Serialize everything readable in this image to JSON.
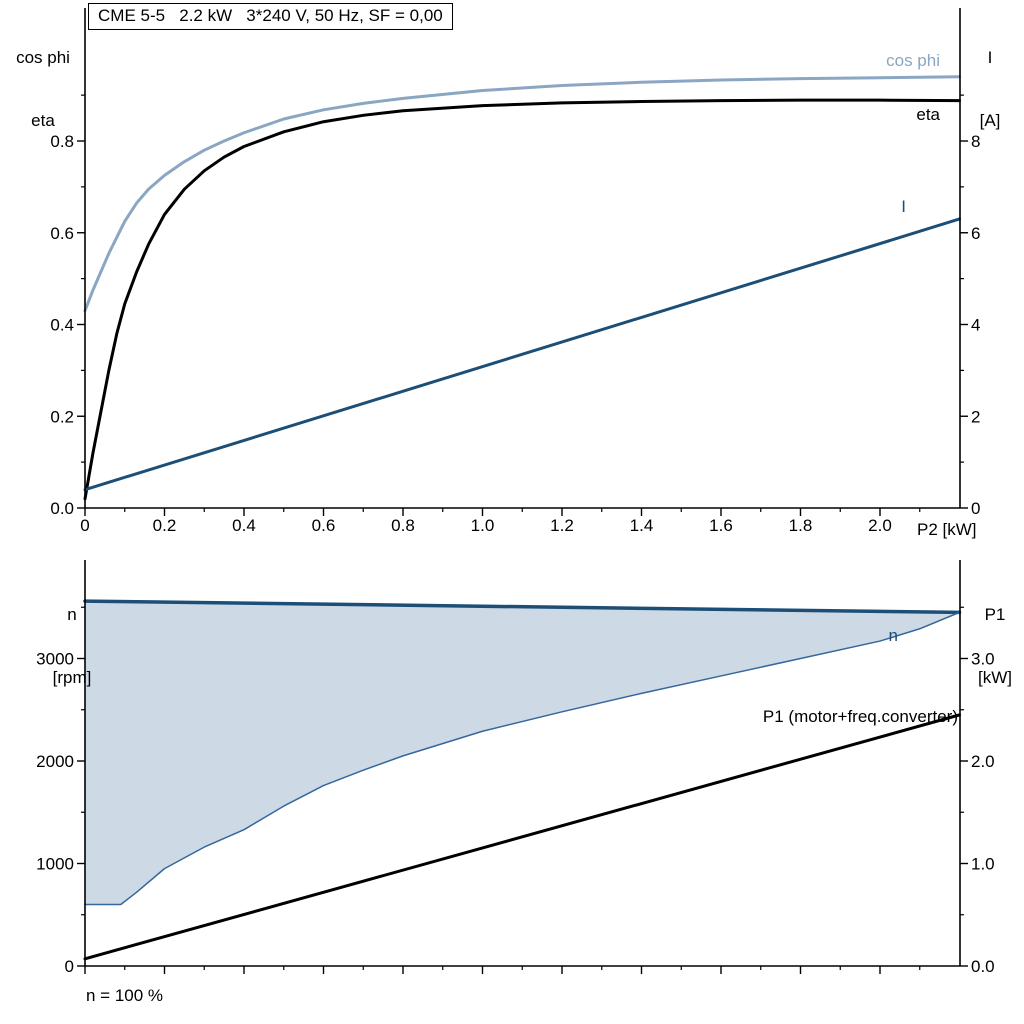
{
  "colors": {
    "light_blue": "#8aa6c3",
    "dark_blue": "#1c4f78",
    "black": "#000000",
    "shade_fill": "#cdd9e5",
    "envelope_line": "#35679c"
  },
  "chart_data": [
    {
      "type": "line",
      "title": "CME 5-5   2.2 kW   3*240 V, 50 Hz, SF = 0,00",
      "xlabel": "P2 [kW]",
      "y_left_label_lines": [
        "cos phi",
        "eta"
      ],
      "y_right_label_lines": [
        "I",
        "[A]"
      ],
      "xlim": [
        0,
        2.2
      ],
      "ylim_left": [
        0,
        1.0
      ],
      "ylim_right": [
        0,
        10
      ],
      "grid": false,
      "x_ticks": {
        "values": [
          0,
          0.2,
          0.4,
          0.6,
          0.8,
          1.0,
          1.2,
          1.4,
          1.6,
          1.8,
          2.0
        ],
        "labels": [
          "0",
          "0.2",
          "0.4",
          "0.6",
          "0.8",
          "1.0",
          "1.2",
          "1.4",
          "1.6",
          "1.8",
          "2.0"
        ]
      },
      "y_left_ticks": {
        "values": [
          0,
          0.2,
          0.4,
          0.6,
          0.8
        ],
        "labels": [
          "0.0",
          "0.2",
          "0.4",
          "0.6",
          "0.8"
        ]
      },
      "y_right_ticks": {
        "values": [
          0,
          2,
          4,
          6,
          8
        ],
        "labels": [
          "0",
          "2",
          "4",
          "6",
          "8"
        ]
      },
      "series": [
        {
          "name": "cos phi",
          "axis": "left",
          "color": "#8aa6c3",
          "width": 3,
          "x": [
            0,
            0.02,
            0.04,
            0.06,
            0.08,
            0.1,
            0.13,
            0.16,
            0.2,
            0.25,
            0.3,
            0.35,
            0.4,
            0.5,
            0.6,
            0.7,
            0.8,
            1.0,
            1.2,
            1.4,
            1.6,
            1.8,
            2.0,
            2.2
          ],
          "y": [
            0.43,
            0.475,
            0.515,
            0.555,
            0.59,
            0.625,
            0.665,
            0.695,
            0.725,
            0.755,
            0.78,
            0.8,
            0.818,
            0.848,
            0.868,
            0.882,
            0.893,
            0.91,
            0.921,
            0.928,
            0.933,
            0.936,
            0.938,
            0.94
          ]
        },
        {
          "name": "eta",
          "axis": "left",
          "color": "#000000",
          "width": 3,
          "x": [
            0,
            0.02,
            0.04,
            0.06,
            0.08,
            0.1,
            0.13,
            0.16,
            0.2,
            0.25,
            0.3,
            0.35,
            0.4,
            0.5,
            0.6,
            0.7,
            0.8,
            1.0,
            1.2,
            1.4,
            1.6,
            1.8,
            2.0,
            2.2
          ],
          "y": [
            0.02,
            0.12,
            0.21,
            0.3,
            0.38,
            0.445,
            0.515,
            0.575,
            0.64,
            0.695,
            0.735,
            0.765,
            0.788,
            0.82,
            0.842,
            0.856,
            0.866,
            0.877,
            0.883,
            0.886,
            0.888,
            0.889,
            0.889,
            0.888
          ]
        },
        {
          "name": "I",
          "axis": "right",
          "color": "#1c4f78",
          "width": 3,
          "x": [
            0,
            2.2
          ],
          "y": [
            0.4,
            6.3
          ]
        }
      ]
    },
    {
      "type": "line",
      "annotation": "n = 100 %",
      "y_left_label_lines": [
        "n",
        "[rpm]"
      ],
      "y_right_label_lines": [
        "P1",
        "[kW]"
      ],
      "xlim": [
        0,
        2.2
      ],
      "ylim_left": [
        0,
        3960
      ],
      "ylim_right": [
        0,
        3.96
      ],
      "grid": false,
      "x_ticks": {
        "values": [
          0,
          0.2,
          0.4,
          0.6,
          0.8,
          1.0,
          1.2,
          1.4,
          1.6,
          1.8,
          2.0
        ],
        "labels": []
      },
      "y_left_ticks": {
        "values": [
          0,
          1000,
          2000,
          3000
        ],
        "labels": [
          "0",
          "1000",
          "2000",
          "3000"
        ]
      },
      "y_right_ticks": {
        "values": [
          0,
          1,
          2,
          3
        ],
        "labels": [
          "0.0",
          "1.0",
          "2.0",
          "3.0"
        ]
      },
      "shaded_region": {
        "between": [
          "n",
          "n-range-lower"
        ],
        "fill": "#cdd9e5"
      },
      "series": [
        {
          "name": "n",
          "axis": "left",
          "color": "#1c4f78",
          "width": 3.5,
          "x": [
            0,
            2.2
          ],
          "y": [
            3560,
            3450
          ]
        },
        {
          "name": "n-range-lower",
          "axis": "left",
          "color": "#35679c",
          "width": 1.5,
          "x": [
            0,
            0.09,
            0.13,
            0.2,
            0.3,
            0.4,
            0.5,
            0.6,
            0.7,
            0.8,
            1.0,
            1.2,
            1.4,
            1.6,
            1.8,
            2.0,
            2.1,
            2.2
          ],
          "y": [
            600,
            600,
            720,
            950,
            1160,
            1330,
            1560,
            1760,
            1910,
            2050,
            2290,
            2480,
            2660,
            2830,
            3000,
            3170,
            3290,
            3450
          ]
        },
        {
          "name": "P1 (motor+freq.converter)",
          "axis": "right",
          "color": "#000000",
          "width": 3,
          "x": [
            0,
            2.2
          ],
          "y": [
            0.07,
            2.45
          ]
        }
      ]
    }
  ]
}
